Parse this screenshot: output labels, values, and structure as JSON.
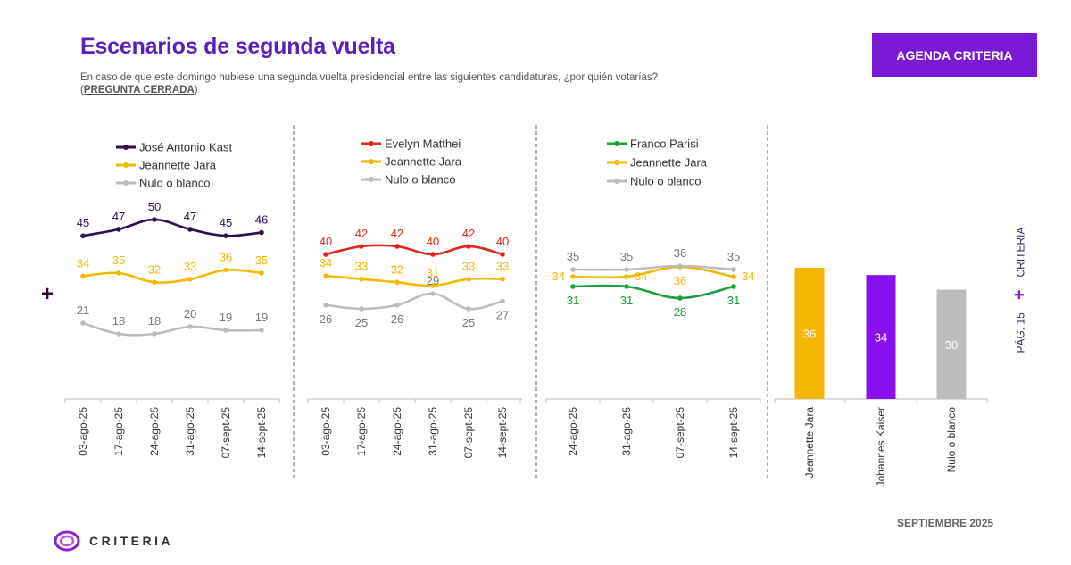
{
  "header": {
    "title": "Escenarios de segunda vuelta",
    "subtitle": "En caso de que este domingo hubiese una segunda vuelta presidencial entre las siguientes candidaturas, ¿por quién votarías?",
    "subtitle_paren_open": "(",
    "subtitle_closed_label": "PREGUNTA CERRADA",
    "subtitle_paren_close": ")",
    "badge": "AGENDA CRITERIA"
  },
  "side": {
    "page": "PÁG. 15",
    "brand": "CRITERIA",
    "plus": "+"
  },
  "left_plus": "+",
  "footer": {
    "date": "SEPTIEMBRE 2025",
    "logo_text": "CRITERIA"
  },
  "colors": {
    "purple_dark": "#2d0f4d",
    "yellow": "#f5b800",
    "gray": "#bdbdbd",
    "red": "#e3241b",
    "green": "#1ba039",
    "violet": "#8b10f0"
  },
  "chart_data": [
    {
      "type": "line",
      "title": "",
      "categories": [
        "03-ago-25",
        "17-ago-25",
        "24-ago-25",
        "31-ago-25",
        "07-sept-25",
        "14-sept-25"
      ],
      "ylim": [
        0,
        60
      ],
      "series": [
        {
          "name": "José Antonio Kast",
          "color": "#2d0f4d",
          "values": [
            45,
            47,
            50,
            47,
            45,
            46
          ]
        },
        {
          "name": "Jeannette Jara",
          "color": "#f5b800",
          "values": [
            34,
            35,
            32,
            33,
            36,
            35
          ]
        },
        {
          "name": "Nulo o blanco",
          "color": "#bdbdbd",
          "values": [
            21,
            18,
            18,
            20,
            19,
            19
          ]
        }
      ]
    },
    {
      "type": "line",
      "title": "",
      "categories": [
        "03-ago-25",
        "17-ago-25",
        "24-ago-25",
        "31-ago-25",
        "07-sept-25",
        "14-sept-25"
      ],
      "ylim": [
        0,
        60
      ],
      "series": [
        {
          "name": "Evelyn Matthei",
          "color": "#e3241b",
          "values": [
            40,
            42,
            42,
            40,
            42,
            40
          ]
        },
        {
          "name": "Jeannette Jara",
          "color": "#f5b800",
          "values": [
            34,
            33,
            32,
            31,
            33,
            33
          ]
        },
        {
          "name": "Nulo o blanco",
          "color": "#bdbdbd",
          "values": [
            26,
            25,
            26,
            29,
            25,
            27
          ]
        }
      ]
    },
    {
      "type": "line",
      "title": "",
      "categories": [
        "24-ago-25",
        "31-ago-25",
        "07-sept-25",
        "14-sept-25"
      ],
      "ylim": [
        0,
        60
      ],
      "series": [
        {
          "name": "Franco Parisi",
          "color": "#1ba039",
          "values": [
            31,
            31,
            28,
            31
          ]
        },
        {
          "name": "Jeannette Jara",
          "color": "#f5b800",
          "values": [
            34,
            34,
            36,
            34
          ]
        },
        {
          "name": "Nulo o blanco",
          "color": "#bdbdbd",
          "values": [
            35,
            35,
            36,
            35
          ]
        }
      ]
    },
    {
      "type": "bar",
      "title": "",
      "categories": [
        "Jeannette Jara",
        "Johannes Kaiser",
        "Nulo o blanco"
      ],
      "values": [
        36,
        34,
        30
      ],
      "colors": [
        "#f5b800",
        "#8b10f0",
        "#bdbdbd"
      ],
      "ylim": [
        0,
        40
      ]
    }
  ]
}
